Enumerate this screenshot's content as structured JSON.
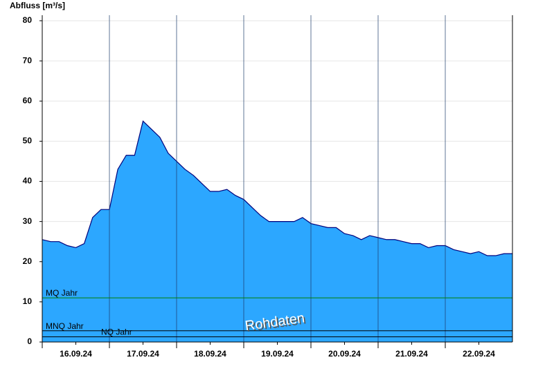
{
  "chart_data": {
    "type": "area",
    "y_label": "Abfluss [m³/s]",
    "annotation": "Rohdaten",
    "x": [
      0,
      3,
      6,
      9,
      12,
      15,
      18,
      21,
      24,
      27,
      30,
      33,
      36,
      39,
      42,
      45,
      48,
      51,
      54,
      57,
      60,
      63,
      66,
      69,
      72,
      75,
      78,
      81,
      84,
      87,
      90,
      93,
      96,
      99,
      102,
      105,
      108,
      111,
      114,
      117,
      120,
      123,
      126,
      129,
      132,
      135,
      138,
      141,
      144,
      147,
      150,
      153,
      156,
      159,
      162,
      165,
      168
    ],
    "series": [
      {
        "name": "Abfluss",
        "color": "#2ca7ff",
        "line_color": "#00007a",
        "values": [
          25.5,
          25,
          25,
          24,
          23.5,
          24.5,
          31,
          33,
          33,
          43,
          46.5,
          46.5,
          55,
          53,
          51,
          47,
          45,
          43,
          41.5,
          39.5,
          37.5,
          37.5,
          38,
          36.5,
          35.5,
          33.5,
          31.5,
          30,
          30,
          30,
          30,
          31,
          29.5,
          29,
          28.5,
          28.5,
          27,
          26.5,
          25.5,
          26.5,
          26,
          25.5,
          25.5,
          25,
          24.5,
          24.5,
          23.5,
          24,
          24,
          23,
          22.5,
          22,
          22.5,
          21.5,
          21.5,
          22,
          22
        ]
      }
    ],
    "reference_lines": [
      {
        "name": "MQ Jahr",
        "value": 11,
        "color": "#008000"
      },
      {
        "name": "MNQ Jahr",
        "value": 2.8,
        "color": "#000000"
      },
      {
        "name": "NQ Jahr",
        "value": 1.3,
        "color": "#000000"
      }
    ],
    "xlim": [
      0,
      168
    ],
    "xticks": [
      {
        "value": 12,
        "label": "16.09.24"
      },
      {
        "value": 36,
        "label": "17.09.24"
      },
      {
        "value": 60,
        "label": "18.09.24"
      },
      {
        "value": 84,
        "label": "19.09.24"
      },
      {
        "value": 108,
        "label": "20.09.24"
      },
      {
        "value": 132,
        "label": "21.09.24"
      },
      {
        "value": 156,
        "label": "22.09.24"
      }
    ],
    "ylim": [
      0,
      80
    ],
    "yticks": [
      0,
      10,
      20,
      30,
      40,
      50,
      60,
      70,
      80
    ],
    "grid": true
  }
}
